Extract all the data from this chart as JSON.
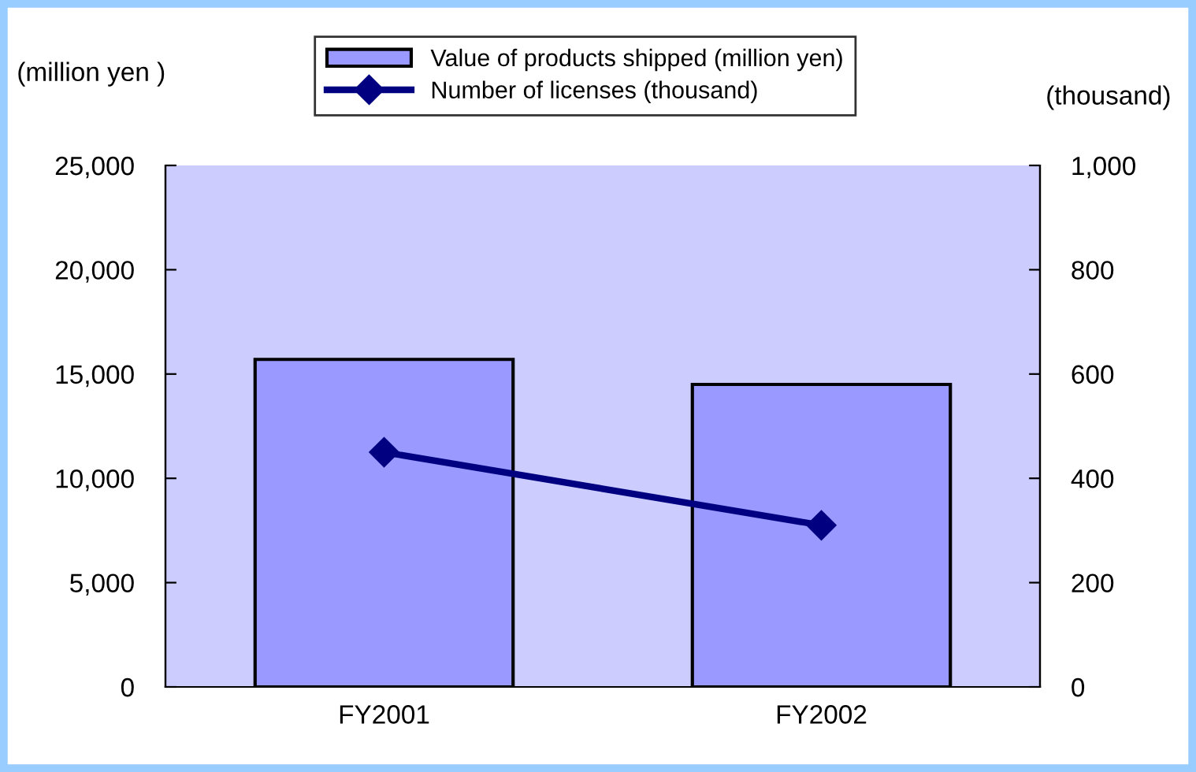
{
  "chart_data": {
    "type": "bar",
    "categories": [
      "FY2001",
      "FY2002"
    ],
    "ylabel": "(million yen )",
    "y2label": "(thousand)",
    "series": [
      {
        "name": "Value of products shipped (million yen)",
        "color": "#9999ff",
        "values": [
          15700,
          14500
        ]
      },
      {
        "name": "Number of licenses (thousand)",
        "type": "line",
        "color": "#000080",
        "axis": "y2",
        "marker": "diamond",
        "values": [
          450,
          310
        ]
      }
    ],
    "ylim": [
      0,
      25000
    ],
    "yticks": [
      {
        "value": 0,
        "label": "0"
      },
      {
        "value": 5000,
        "label": "5,000"
      },
      {
        "value": 10000,
        "label": "10,000"
      },
      {
        "value": 15000,
        "label": "15,000"
      },
      {
        "value": 20000,
        "label": "20,000"
      },
      {
        "value": 25000,
        "label": "25,000"
      }
    ],
    "y2lim": [
      0,
      1000
    ],
    "y2ticks": [
      0,
      200,
      400,
      600,
      800,
      {
        "value": 1000,
        "label": "1,000"
      }
    ],
    "grid": false,
    "legend": "top"
  }
}
